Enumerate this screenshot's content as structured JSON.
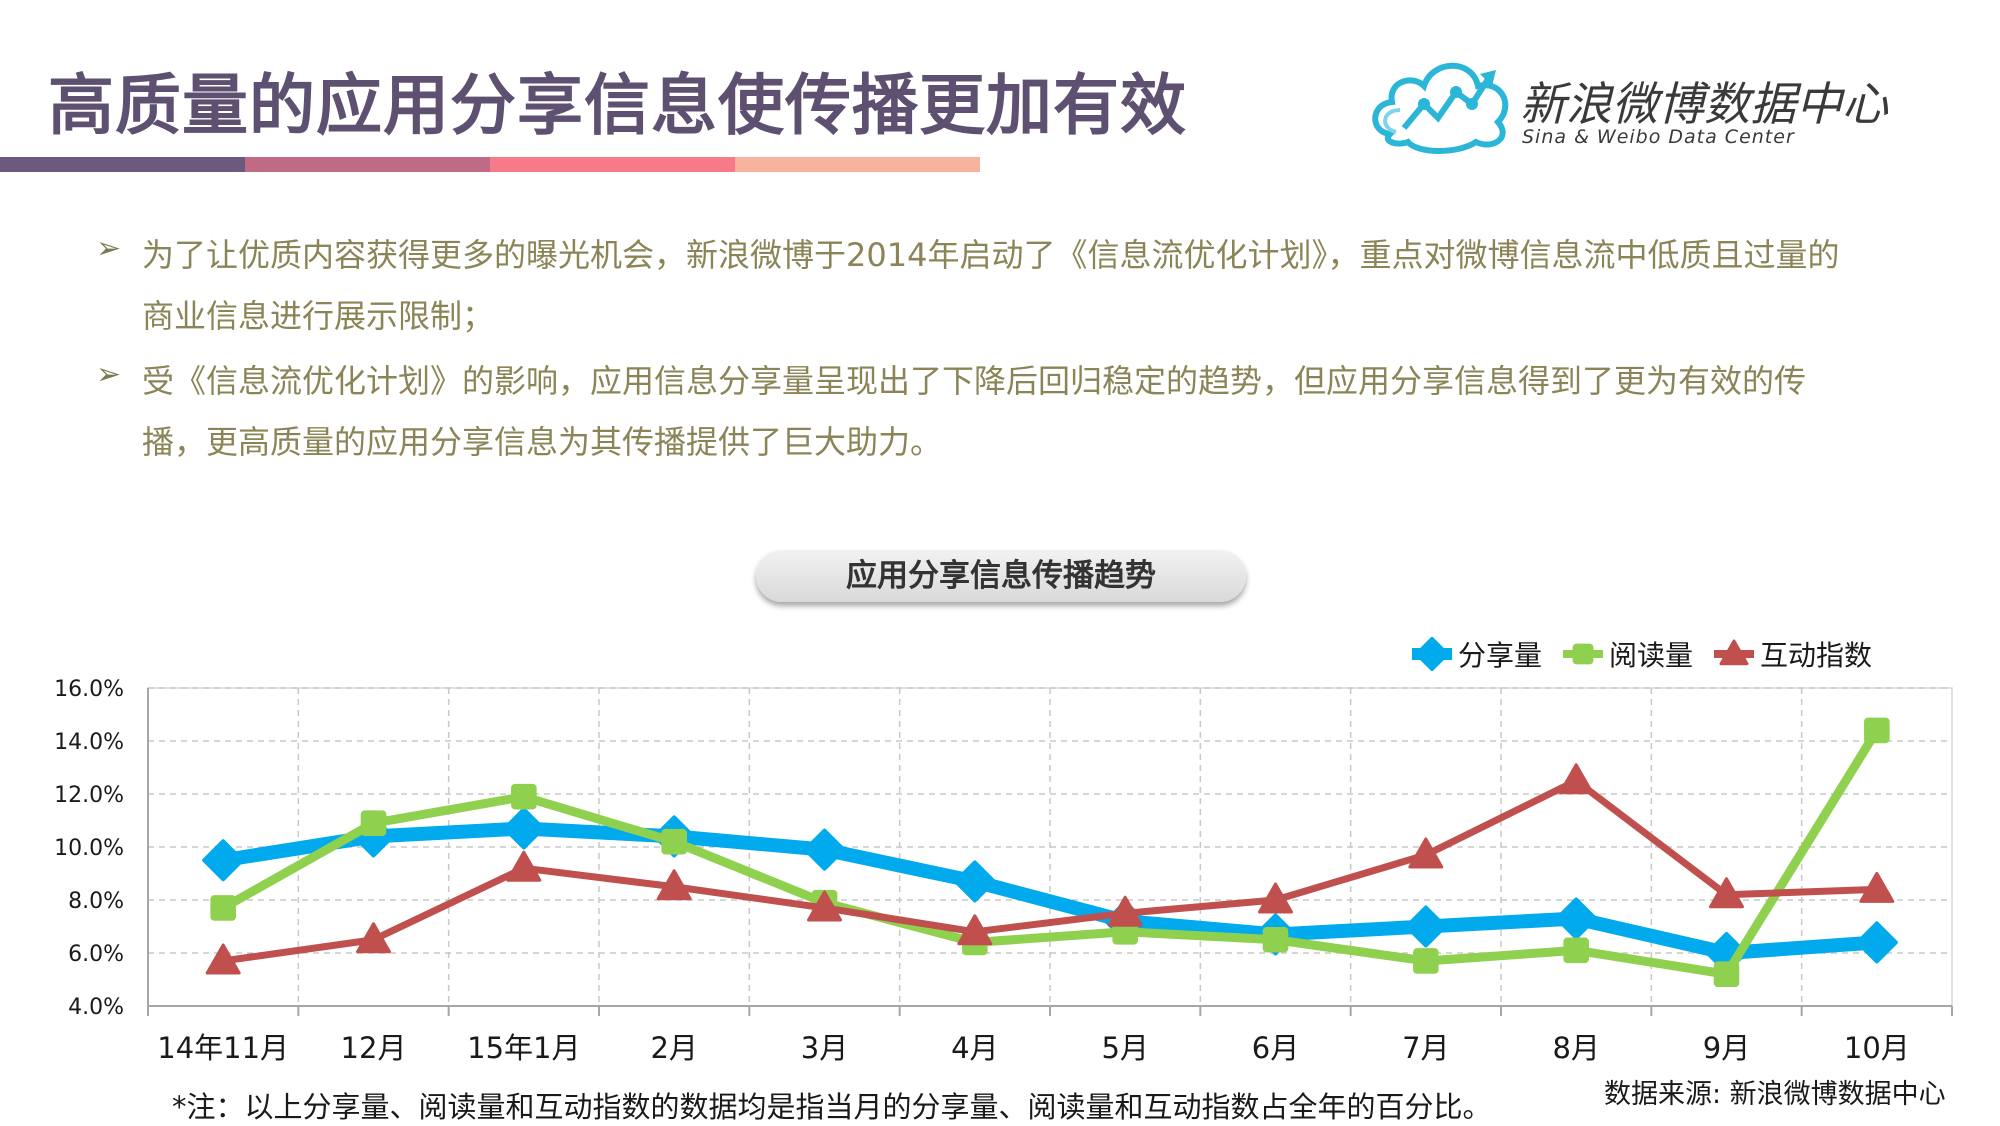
{
  "header": {
    "title": "高质量的应用分享信息使传播更加有效",
    "accent_colors": [
      "#6b5a7e",
      "#c06b86",
      "#f77a8a",
      "#f8b39e"
    ]
  },
  "logo": {
    "name": "新浪微博数据中心",
    "subtitle": "Sina & Weibo Data Center",
    "icon": "cloud-chart-logo-icon"
  },
  "bullets": [
    {
      "icon": "arrow-bullet-icon",
      "text": "为了让优质内容获得更多的曝光机会，新浪微博于2014年启动了《信息流优化计划》，重点对微博信息流中低质且过量的商业信息进行展示限制；"
    },
    {
      "icon": "arrow-bullet-icon",
      "text": "受《信息流优化计划》的影响，应用信息分享量呈现出了下降后回归稳定的趋势，但应用分享信息得到了更为有效的传播，更高质量的应用分享信息为其传播提供了巨大助力。"
    }
  ],
  "chart_data": {
    "type": "line",
    "title": "应用分享信息传播趋势",
    "categories": [
      "14年11月",
      "12月",
      "15年1月",
      "2月",
      "3月",
      "4月",
      "5月",
      "6月",
      "7月",
      "8月",
      "9月",
      "10月"
    ],
    "series": [
      {
        "name": "分享量",
        "color": "#00aaec",
        "marker": "diamond",
        "values": [
          9.5,
          10.4,
          10.7,
          10.4,
          9.9,
          8.7,
          7.2,
          6.7,
          7.0,
          7.3,
          6.0,
          6.4
        ]
      },
      {
        "name": "阅读量",
        "color": "#8fd14f",
        "marker": "square",
        "values": [
          7.7,
          10.9,
          11.9,
          10.2,
          7.9,
          6.4,
          6.8,
          6.5,
          5.7,
          6.1,
          5.2,
          14.4
        ]
      },
      {
        "name": "互动指数",
        "color": "#c0504d",
        "marker": "triangle",
        "values": [
          5.7,
          6.5,
          9.2,
          8.5,
          7.7,
          6.8,
          7.5,
          8.0,
          9.7,
          12.5,
          8.2,
          8.4
        ]
      }
    ],
    "yticks": [
      "4.0%",
      "6.0%",
      "8.0%",
      "10.0%",
      "12.0%",
      "14.0%",
      "16.0%"
    ],
    "ylim": [
      4,
      16
    ],
    "grid": true,
    "legend_position": "top-right"
  },
  "footer": {
    "note": "*注：以上分享量、阅读量和互动指数的数据均是指当月的分享量、阅读量和互动指数占全年的百分比。",
    "source": "数据来源: 新浪微博数据中心"
  }
}
